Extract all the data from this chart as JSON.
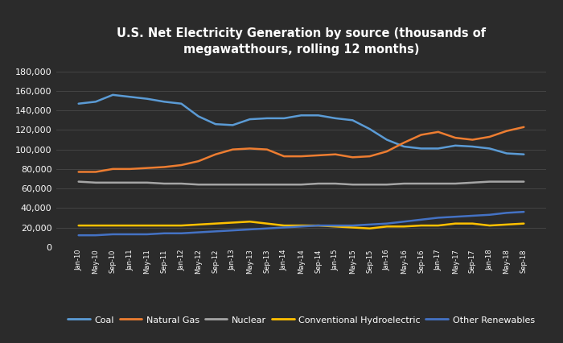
{
  "title": "U.S. Net Electricity Generation by source (thousands of\nmegawatthours, rolling 12 months)",
  "background_color": "#2b2b2b",
  "plot_bg_color": "#2b2b2b",
  "text_color": "#ffffff",
  "grid_color": "#484848",
  "x_labels": [
    "Jan-10",
    "May-10",
    "Sep-10",
    "Jan-11",
    "May-11",
    "Sep-11",
    "Jan-12",
    "May-12",
    "Sep-12",
    "Jan-13",
    "May-13",
    "Sep-13",
    "Jan-14",
    "May-14",
    "Sep-14",
    "Jan-15",
    "May-15",
    "Sep-15",
    "Jan-16",
    "May-16",
    "Sep-16",
    "Jan-17",
    "May-17",
    "Sep-17",
    "Jan-18",
    "May-18",
    "Sep-18"
  ],
  "series": {
    "Coal": {
      "color": "#5b9bd5",
      "values": [
        147000,
        149000,
        156000,
        154000,
        152000,
        149000,
        147000,
        134000,
        126000,
        125000,
        131000,
        132000,
        132000,
        135000,
        135000,
        132000,
        130000,
        121000,
        110000,
        103000,
        101000,
        101000,
        104000,
        103000,
        101000,
        96000,
        95000
      ]
    },
    "Natural Gas": {
      "color": "#ed7d31",
      "values": [
        77000,
        77000,
        80000,
        80000,
        81000,
        82000,
        84000,
        88000,
        95000,
        100000,
        101000,
        100000,
        93000,
        93000,
        94000,
        95000,
        92000,
        93000,
        98000,
        107000,
        115000,
        118000,
        112000,
        110000,
        113000,
        119000,
        123000
      ]
    },
    "Nuclear": {
      "color": "#a5a5a5",
      "values": [
        67000,
        66000,
        66000,
        66000,
        66000,
        65000,
        65000,
        64000,
        64000,
        64000,
        64000,
        64000,
        64000,
        64000,
        65000,
        65000,
        64000,
        64000,
        64000,
        65000,
        65000,
        65000,
        65000,
        66000,
        67000,
        67000,
        67000
      ]
    },
    "Conventional Hydroelectric": {
      "color": "#ffc000",
      "values": [
        22000,
        22000,
        22000,
        22000,
        22000,
        22000,
        22000,
        23000,
        24000,
        25000,
        26000,
        24000,
        22000,
        22000,
        22000,
        21000,
        20000,
        19000,
        21000,
        21000,
        22000,
        22000,
        24000,
        24000,
        22000,
        23000,
        24000
      ]
    },
    "Other Renewables": {
      "color": "#4472c4",
      "values": [
        12000,
        12000,
        13000,
        13000,
        13000,
        14000,
        14000,
        15000,
        16000,
        17000,
        18000,
        19000,
        20000,
        21000,
        22000,
        22000,
        22000,
        23000,
        24000,
        26000,
        28000,
        30000,
        31000,
        32000,
        33000,
        35000,
        36000
      ]
    }
  },
  "ylim": [
    0,
    190000
  ],
  "yticks": [
    0,
    20000,
    40000,
    60000,
    80000,
    100000,
    120000,
    140000,
    160000,
    180000
  ],
  "legend_entries": [
    "Coal",
    "Natural Gas",
    "Nuclear",
    "Conventional Hydroelectric",
    "Other Renewables"
  ],
  "legend_colors": [
    "#5b9bd5",
    "#ed7d31",
    "#a5a5a5",
    "#ffc000",
    "#4472c4"
  ]
}
